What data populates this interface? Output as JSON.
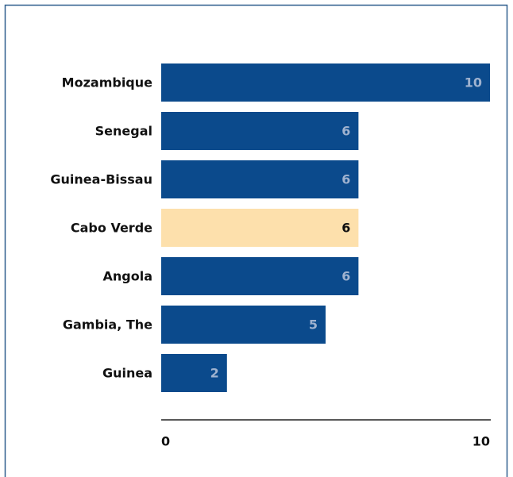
{
  "chart_data": {
    "type": "bar",
    "orientation": "horizontal",
    "categories": [
      "Mozambique",
      "Senegal",
      "Guinea-Bissau",
      "Cabo Verde",
      "Angola",
      "Gambia, The",
      "Guinea"
    ],
    "values": [
      10,
      6,
      6,
      6,
      6,
      5,
      2
    ],
    "colors": [
      "#0b4a8c",
      "#0b4a8c",
      "#0b4a8c",
      "#fde0ac",
      "#0b4a8c",
      "#0b4a8c",
      "#0b4a8c"
    ],
    "xlim": [
      0,
      10
    ],
    "xticks": [
      0,
      10
    ],
    "grid": false
  }
}
